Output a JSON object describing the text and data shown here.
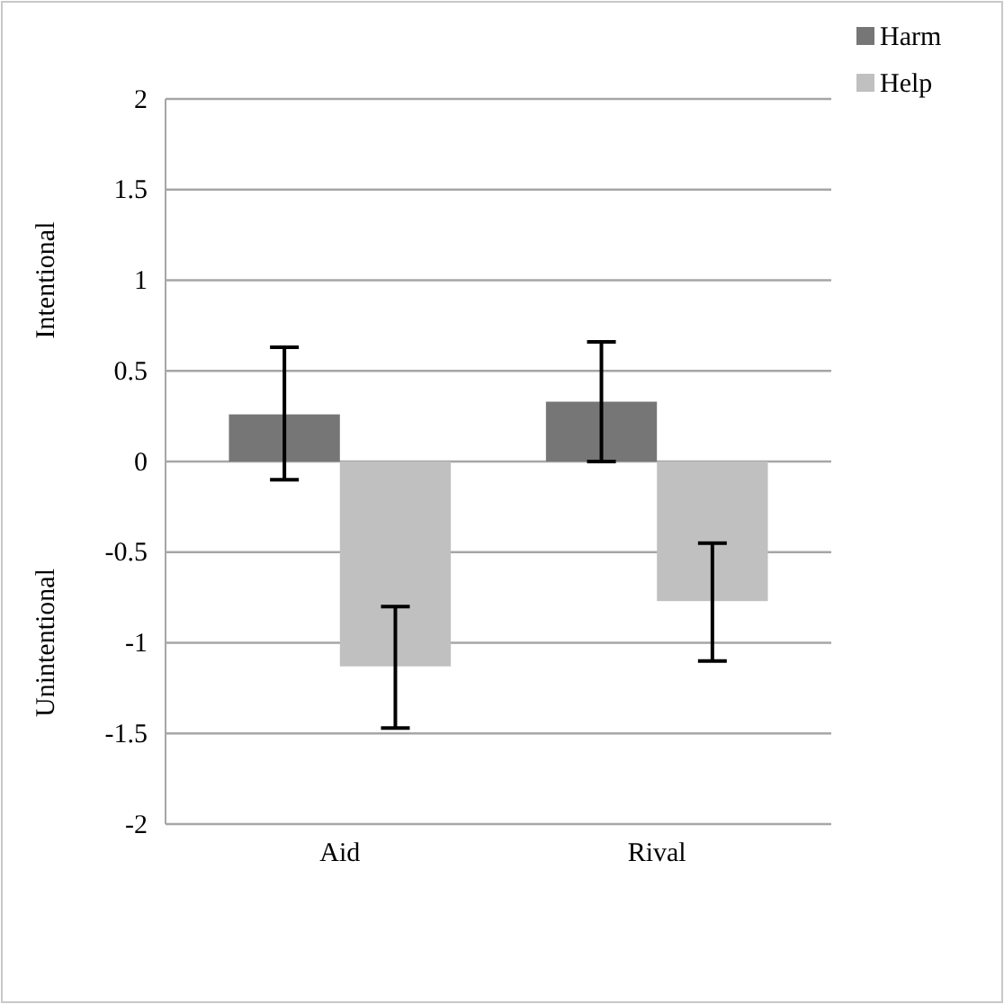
{
  "chart_data": {
    "type": "bar",
    "categories": [
      "Aid",
      "Rival"
    ],
    "series": [
      {
        "name": "Harm",
        "color": "#767676",
        "values": [
          0.26,
          0.33
        ],
        "errors": [
          [
            -0.1,
            0.63
          ],
          [
            0.0,
            0.66
          ]
        ]
      },
      {
        "name": "Help",
        "color": "#c0c0c0",
        "values": [
          -1.13,
          -0.77
        ],
        "errors": [
          [
            -1.47,
            -0.8
          ],
          [
            -1.1,
            -0.45
          ]
        ]
      }
    ],
    "ylim": [
      -2,
      2
    ],
    "yticks": [
      -2,
      -1.5,
      -1,
      -0.5,
      0,
      0.5,
      1,
      1.5,
      2
    ],
    "grid": "y",
    "legend": "top right",
    "annotations": [
      "Intentional",
      "Unintentional"
    ]
  }
}
